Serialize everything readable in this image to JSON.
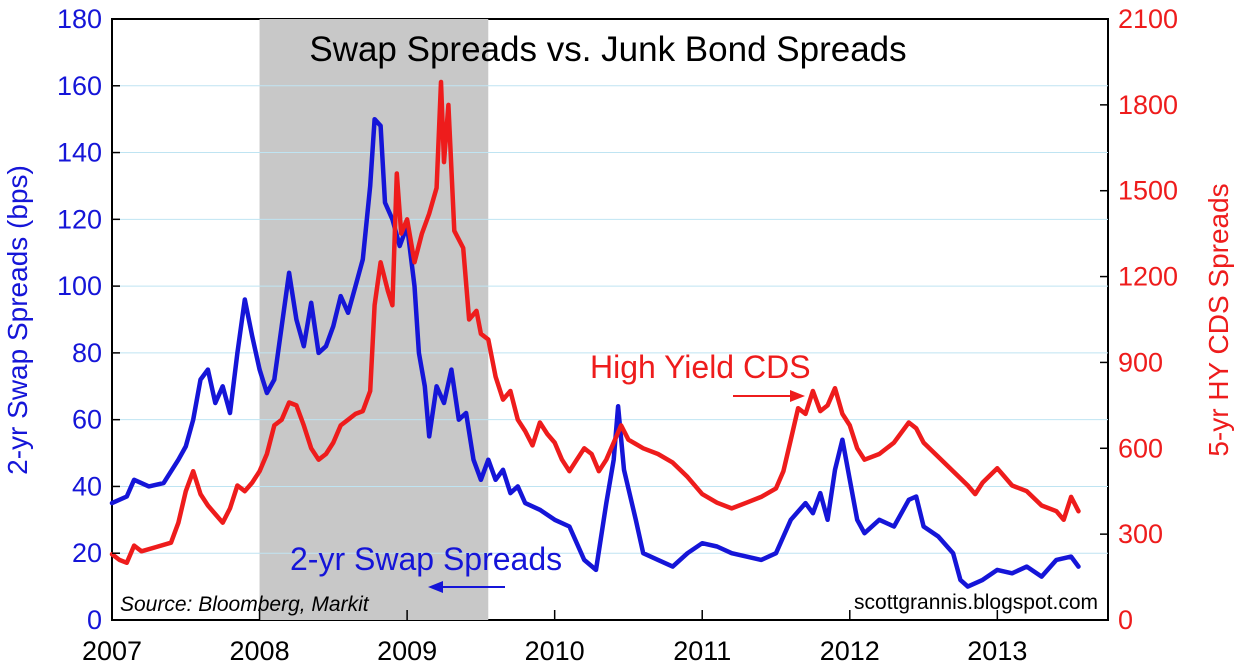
{
  "chart_data": {
    "type": "line",
    "title": "Swap Spreads vs. Junk Bond Spreads",
    "ylabel_left": "2-yr Swap Spreads (bps)",
    "ylabel_right": "5-yr HY CDS Spreads",
    "source": "Source: Bloomberg, Markit",
    "credit": "scottgrannis.blogspot.com",
    "x_range": [
      2007,
      2013.75
    ],
    "x_ticks": [
      "2007",
      "2008",
      "2009",
      "2010",
      "2011",
      "2012",
      "2013"
    ],
    "y_left": {
      "range": [
        0,
        180
      ],
      "ticks": [
        "0",
        "20",
        "40",
        "60",
        "80",
        "100",
        "120",
        "140",
        "160",
        "180"
      ],
      "color": "#1515d8"
    },
    "y_right": {
      "range": [
        0,
        2100
      ],
      "ticks": [
        "0",
        "300",
        "600",
        "900",
        "1200",
        "1500",
        "1800",
        "2100"
      ],
      "color": "#ee1c1c"
    },
    "grid": "horizontal",
    "shaded_region": {
      "x": [
        2008.0,
        2009.55
      ],
      "color": "#c8c8c8"
    },
    "annotations": [
      {
        "text": "High Yield CDS",
        "color": "#ee1c1c",
        "arrow": "right"
      },
      {
        "text": "2-yr Swap Spreads",
        "color": "#1515d8",
        "arrow": "left"
      }
    ],
    "series": [
      {
        "name": "2-yr Swap Spreads",
        "axis": "left",
        "color": "#1515d8",
        "points": [
          [
            2007.0,
            35
          ],
          [
            2007.1,
            37
          ],
          [
            2007.15,
            42
          ],
          [
            2007.25,
            40
          ],
          [
            2007.35,
            41
          ],
          [
            2007.45,
            48
          ],
          [
            2007.5,
            52
          ],
          [
            2007.55,
            60
          ],
          [
            2007.6,
            72
          ],
          [
            2007.65,
            75
          ],
          [
            2007.7,
            65
          ],
          [
            2007.75,
            70
          ],
          [
            2007.8,
            62
          ],
          [
            2007.85,
            80
          ],
          [
            2007.9,
            96
          ],
          [
            2007.95,
            85
          ],
          [
            2008.0,
            75
          ],
          [
            2008.05,
            68
          ],
          [
            2008.1,
            72
          ],
          [
            2008.15,
            88
          ],
          [
            2008.2,
            104
          ],
          [
            2008.25,
            90
          ],
          [
            2008.3,
            82
          ],
          [
            2008.35,
            95
          ],
          [
            2008.4,
            80
          ],
          [
            2008.45,
            82
          ],
          [
            2008.5,
            88
          ],
          [
            2008.55,
            97
          ],
          [
            2008.6,
            92
          ],
          [
            2008.65,
            100
          ],
          [
            2008.7,
            108
          ],
          [
            2008.75,
            130
          ],
          [
            2008.78,
            150
          ],
          [
            2008.82,
            148
          ],
          [
            2008.85,
            125
          ],
          [
            2008.9,
            120
          ],
          [
            2008.95,
            112
          ],
          [
            2009.0,
            118
          ],
          [
            2009.05,
            100
          ],
          [
            2009.08,
            80
          ],
          [
            2009.12,
            70
          ],
          [
            2009.15,
            55
          ],
          [
            2009.2,
            70
          ],
          [
            2009.25,
            65
          ],
          [
            2009.3,
            75
          ],
          [
            2009.35,
            60
          ],
          [
            2009.4,
            62
          ],
          [
            2009.45,
            48
          ],
          [
            2009.5,
            42
          ],
          [
            2009.55,
            48
          ],
          [
            2009.6,
            42
          ],
          [
            2009.65,
            45
          ],
          [
            2009.7,
            38
          ],
          [
            2009.75,
            40
          ],
          [
            2009.8,
            35
          ],
          [
            2009.9,
            33
          ],
          [
            2010.0,
            30
          ],
          [
            2010.1,
            28
          ],
          [
            2010.2,
            18
          ],
          [
            2010.28,
            15
          ],
          [
            2010.35,
            35
          ],
          [
            2010.4,
            48
          ],
          [
            2010.43,
            64
          ],
          [
            2010.47,
            45
          ],
          [
            2010.55,
            30
          ],
          [
            2010.6,
            20
          ],
          [
            2010.7,
            18
          ],
          [
            2010.8,
            16
          ],
          [
            2010.9,
            20
          ],
          [
            2011.0,
            23
          ],
          [
            2011.1,
            22
          ],
          [
            2011.2,
            20
          ],
          [
            2011.3,
            19
          ],
          [
            2011.4,
            18
          ],
          [
            2011.5,
            20
          ],
          [
            2011.55,
            25
          ],
          [
            2011.6,
            30
          ],
          [
            2011.7,
            35
          ],
          [
            2011.75,
            32
          ],
          [
            2011.8,
            38
          ],
          [
            2011.85,
            30
          ],
          [
            2011.9,
            45
          ],
          [
            2011.95,
            54
          ],
          [
            2012.0,
            42
          ],
          [
            2012.05,
            30
          ],
          [
            2012.1,
            26
          ],
          [
            2012.2,
            30
          ],
          [
            2012.3,
            28
          ],
          [
            2012.4,
            36
          ],
          [
            2012.45,
            37
          ],
          [
            2012.5,
            28
          ],
          [
            2012.6,
            25
          ],
          [
            2012.7,
            20
          ],
          [
            2012.75,
            12
          ],
          [
            2012.8,
            10
          ],
          [
            2012.9,
            12
          ],
          [
            2013.0,
            15
          ],
          [
            2013.1,
            14
          ],
          [
            2013.2,
            16
          ],
          [
            2013.3,
            13
          ],
          [
            2013.4,
            18
          ],
          [
            2013.5,
            19
          ],
          [
            2013.55,
            16
          ]
        ]
      },
      {
        "name": "High Yield CDS",
        "axis": "right",
        "color": "#ee1c1c",
        "points": [
          [
            2007.0,
            230
          ],
          [
            2007.05,
            210
          ],
          [
            2007.1,
            200
          ],
          [
            2007.15,
            260
          ],
          [
            2007.2,
            240
          ],
          [
            2007.3,
            255
          ],
          [
            2007.4,
            270
          ],
          [
            2007.45,
            340
          ],
          [
            2007.5,
            450
          ],
          [
            2007.55,
            520
          ],
          [
            2007.6,
            440
          ],
          [
            2007.65,
            400
          ],
          [
            2007.7,
            370
          ],
          [
            2007.75,
            340
          ],
          [
            2007.8,
            390
          ],
          [
            2007.85,
            470
          ],
          [
            2007.9,
            450
          ],
          [
            2007.95,
            480
          ],
          [
            2008.0,
            520
          ],
          [
            2008.05,
            580
          ],
          [
            2008.1,
            680
          ],
          [
            2008.15,
            700
          ],
          [
            2008.2,
            760
          ],
          [
            2008.25,
            750
          ],
          [
            2008.3,
            680
          ],
          [
            2008.35,
            600
          ],
          [
            2008.4,
            560
          ],
          [
            2008.45,
            580
          ],
          [
            2008.5,
            620
          ],
          [
            2008.55,
            680
          ],
          [
            2008.6,
            700
          ],
          [
            2008.65,
            720
          ],
          [
            2008.7,
            730
          ],
          [
            2008.75,
            800
          ],
          [
            2008.78,
            1100
          ],
          [
            2008.82,
            1250
          ],
          [
            2008.87,
            1150
          ],
          [
            2008.9,
            1100
          ],
          [
            2008.93,
            1560
          ],
          [
            2008.96,
            1350
          ],
          [
            2009.0,
            1400
          ],
          [
            2009.05,
            1250
          ],
          [
            2009.1,
            1350
          ],
          [
            2009.15,
            1420
          ],
          [
            2009.2,
            1510
          ],
          [
            2009.23,
            1880
          ],
          [
            2009.25,
            1600
          ],
          [
            2009.28,
            1800
          ],
          [
            2009.32,
            1360
          ],
          [
            2009.38,
            1300
          ],
          [
            2009.42,
            1050
          ],
          [
            2009.47,
            1080
          ],
          [
            2009.5,
            1000
          ],
          [
            2009.55,
            980
          ],
          [
            2009.6,
            850
          ],
          [
            2009.65,
            770
          ],
          [
            2009.7,
            800
          ],
          [
            2009.75,
            700
          ],
          [
            2009.8,
            660
          ],
          [
            2009.85,
            610
          ],
          [
            2009.9,
            690
          ],
          [
            2009.95,
            650
          ],
          [
            2010.0,
            620
          ],
          [
            2010.05,
            560
          ],
          [
            2010.1,
            520
          ],
          [
            2010.15,
            560
          ],
          [
            2010.2,
            600
          ],
          [
            2010.25,
            580
          ],
          [
            2010.3,
            520
          ],
          [
            2010.35,
            560
          ],
          [
            2010.4,
            620
          ],
          [
            2010.45,
            680
          ],
          [
            2010.5,
            630
          ],
          [
            2010.6,
            600
          ],
          [
            2010.7,
            580
          ],
          [
            2010.8,
            550
          ],
          [
            2010.9,
            500
          ],
          [
            2011.0,
            440
          ],
          [
            2011.1,
            410
          ],
          [
            2011.2,
            390
          ],
          [
            2011.3,
            410
          ],
          [
            2011.4,
            430
          ],
          [
            2011.5,
            460
          ],
          [
            2011.55,
            520
          ],
          [
            2011.6,
            630
          ],
          [
            2011.65,
            740
          ],
          [
            2011.7,
            720
          ],
          [
            2011.75,
            800
          ],
          [
            2011.8,
            730
          ],
          [
            2011.85,
            750
          ],
          [
            2011.9,
            810
          ],
          [
            2011.95,
            720
          ],
          [
            2012.0,
            680
          ],
          [
            2012.05,
            600
          ],
          [
            2012.1,
            560
          ],
          [
            2012.2,
            580
          ],
          [
            2012.3,
            620
          ],
          [
            2012.4,
            690
          ],
          [
            2012.45,
            670
          ],
          [
            2012.5,
            620
          ],
          [
            2012.6,
            570
          ],
          [
            2012.7,
            520
          ],
          [
            2012.8,
            470
          ],
          [
            2012.85,
            440
          ],
          [
            2012.9,
            480
          ],
          [
            2013.0,
            530
          ],
          [
            2013.05,
            500
          ],
          [
            2013.1,
            470
          ],
          [
            2013.2,
            450
          ],
          [
            2013.3,
            400
          ],
          [
            2013.4,
            380
          ],
          [
            2013.45,
            350
          ],
          [
            2013.5,
            430
          ],
          [
            2013.55,
            380
          ]
        ]
      }
    ]
  }
}
